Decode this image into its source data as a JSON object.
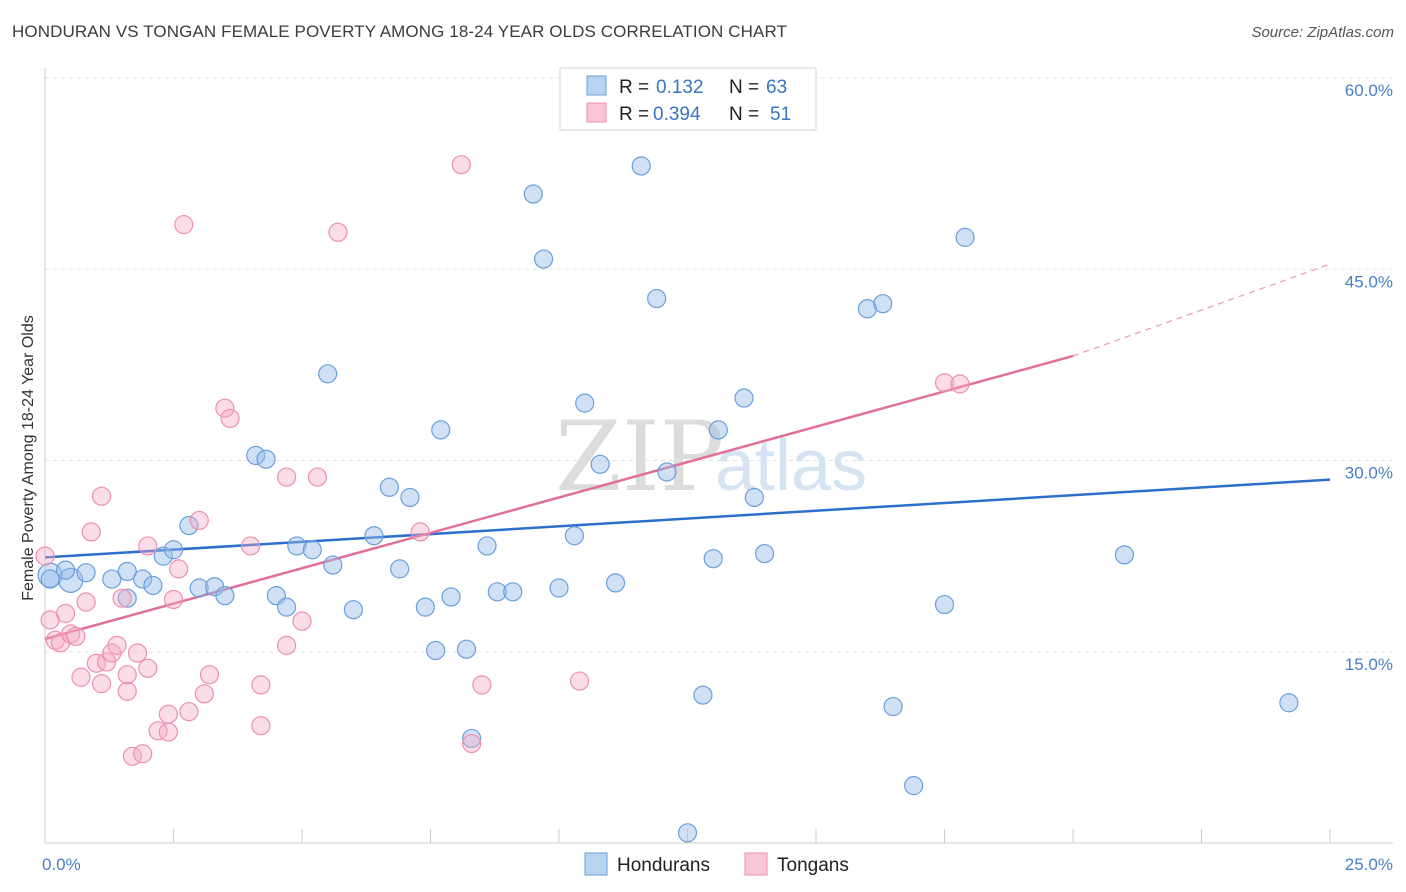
{
  "title": "HONDURAN VS TONGAN FEMALE POVERTY AMONG 18-24 YEAR OLDS CORRELATION CHART",
  "source": "Source: ZipAtlas.com",
  "watermark": {
    "zip": "ZIP",
    "atlas": "atlas"
  },
  "legend": {
    "rows": [
      {
        "r_label": "R =",
        "r_value": "0.132",
        "n_label": "N =",
        "n_value": "63"
      },
      {
        "r_label": "R =",
        "r_value": "0.394",
        "n_label": "N =",
        "n_value": "51"
      }
    ]
  },
  "chart_data": {
    "type": "scatter",
    "title": "HONDURAN VS TONGAN FEMALE POVERTY AMONG 18-24 YEAR OLDS CORRELATION CHART",
    "xlabel": "",
    "ylabel": "Female Poverty Among 18-24 Year Olds",
    "xlim": [
      0,
      25
    ],
    "ylim": [
      0,
      60
    ],
    "x_tick_labels": [
      "0.0%",
      "25.0%"
    ],
    "y_ticks": [
      15,
      30,
      45,
      60
    ],
    "y_tick_labels": [
      "15.0%",
      "30.0%",
      "45.0%",
      "60.0%"
    ],
    "grid": true,
    "legend_position": "top-center",
    "colors": {
      "Hondurans": "#6a9fdc",
      "Tongans": "#ee8fb0",
      "honduran_line": "#2e6fcc",
      "tongan_line": "#e0709a"
    },
    "series": [
      {
        "name": "Hondurans",
        "r": 0.132,
        "n": 63,
        "trend": {
          "x": [
            0,
            25
          ],
          "y": [
            22.4,
            28.5
          ]
        },
        "points": [
          [
            0.1,
            21.0
          ],
          [
            0.5,
            20.6
          ],
          [
            0.8,
            21.2
          ],
          [
            1.3,
            20.7
          ],
          [
            1.6,
            21.3
          ],
          [
            1.6,
            19.2
          ],
          [
            1.9,
            20.7
          ],
          [
            2.1,
            20.2
          ],
          [
            2.3,
            22.5
          ],
          [
            2.5,
            23.0
          ],
          [
            2.8,
            24.9
          ],
          [
            3.0,
            20.0
          ],
          [
            3.3,
            20.1
          ],
          [
            3.5,
            19.4
          ],
          [
            4.1,
            30.4
          ],
          [
            4.3,
            30.1
          ],
          [
            4.5,
            19.4
          ],
          [
            4.7,
            18.5
          ],
          [
            4.9,
            23.3
          ],
          [
            5.2,
            23.0
          ],
          [
            5.5,
            36.8
          ],
          [
            5.6,
            21.8
          ],
          [
            6.0,
            18.3
          ],
          [
            6.4,
            24.1
          ],
          [
            6.7,
            27.9
          ],
          [
            6.9,
            21.5
          ],
          [
            7.1,
            27.1
          ],
          [
            7.4,
            18.5
          ],
          [
            7.6,
            15.1
          ],
          [
            7.7,
            32.4
          ],
          [
            7.9,
            19.3
          ],
          [
            8.2,
            15.2
          ],
          [
            8.3,
            8.2
          ],
          [
            8.6,
            23.3
          ],
          [
            8.8,
            19.7
          ],
          [
            9.1,
            19.7
          ],
          [
            9.5,
            50.9
          ],
          [
            9.7,
            45.8
          ],
          [
            10.0,
            20.0
          ],
          [
            10.3,
            24.1
          ],
          [
            10.5,
            34.5
          ],
          [
            10.8,
            29.7
          ],
          [
            11.1,
            20.4
          ],
          [
            11.6,
            53.1
          ],
          [
            11.9,
            42.7
          ],
          [
            12.1,
            29.1
          ],
          [
            12.5,
            0.8
          ],
          [
            12.8,
            11.6
          ],
          [
            13.0,
            22.3
          ],
          [
            13.1,
            32.4
          ],
          [
            13.6,
            34.9
          ],
          [
            13.8,
            27.1
          ],
          [
            14.0,
            22.7
          ],
          [
            16.0,
            41.9
          ],
          [
            16.3,
            42.3
          ],
          [
            16.5,
            10.7
          ],
          [
            16.9,
            4.5
          ],
          [
            17.5,
            18.7
          ],
          [
            17.9,
            47.5
          ],
          [
            21.0,
            22.6
          ],
          [
            24.2,
            11.0
          ],
          [
            0.1,
            20.7
          ],
          [
            0.4,
            21.4
          ]
        ]
      },
      {
        "name": "Tongans",
        "r": 0.394,
        "n": 51,
        "trend": {
          "x": [
            0,
            20
          ],
          "y": [
            16.0,
            38.2
          ]
        },
        "trend_dashed": {
          "x": [
            20,
            25
          ],
          "y": [
            38.2,
            45.4
          ]
        },
        "points": [
          [
            0.0,
            22.5
          ],
          [
            0.1,
            17.5
          ],
          [
            0.2,
            15.9
          ],
          [
            0.3,
            15.7
          ],
          [
            0.4,
            18.0
          ],
          [
            0.5,
            16.4
          ],
          [
            0.6,
            16.2
          ],
          [
            0.7,
            13.0
          ],
          [
            0.8,
            18.9
          ],
          [
            0.9,
            24.4
          ],
          [
            1.0,
            14.1
          ],
          [
            1.1,
            12.5
          ],
          [
            1.1,
            27.2
          ],
          [
            1.2,
            14.2
          ],
          [
            1.3,
            14.9
          ],
          [
            1.4,
            15.5
          ],
          [
            1.5,
            19.2
          ],
          [
            1.6,
            11.9
          ],
          [
            1.6,
            13.2
          ],
          [
            1.7,
            6.8
          ],
          [
            1.8,
            14.9
          ],
          [
            1.9,
            7.0
          ],
          [
            2.0,
            23.3
          ],
          [
            2.0,
            13.7
          ],
          [
            2.2,
            8.8
          ],
          [
            2.4,
            10.1
          ],
          [
            2.4,
            8.7
          ],
          [
            2.5,
            19.1
          ],
          [
            2.6,
            21.5
          ],
          [
            2.7,
            48.5
          ],
          [
            2.8,
            10.3
          ],
          [
            3.0,
            25.3
          ],
          [
            3.1,
            11.7
          ],
          [
            3.2,
            13.2
          ],
          [
            3.5,
            34.1
          ],
          [
            3.6,
            33.3
          ],
          [
            4.0,
            23.3
          ],
          [
            4.2,
            9.2
          ],
          [
            4.2,
            12.4
          ],
          [
            4.7,
            15.5
          ],
          [
            4.7,
            28.7
          ],
          [
            5.0,
            17.4
          ],
          [
            5.3,
            28.7
          ],
          [
            5.7,
            47.9
          ],
          [
            7.3,
            24.4
          ],
          [
            8.1,
            53.2
          ],
          [
            8.3,
            7.8
          ],
          [
            8.5,
            12.4
          ],
          [
            10.4,
            12.7
          ],
          [
            17.5,
            36.1
          ],
          [
            17.8,
            36.0
          ]
        ]
      }
    ]
  }
}
